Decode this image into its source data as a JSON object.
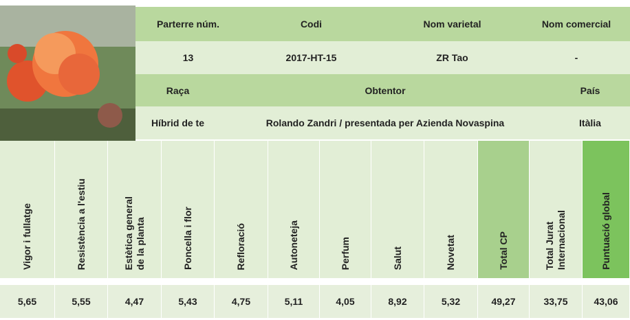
{
  "info": {
    "row1": [
      "Parterre núm.",
      "Codi",
      "Nom varietal",
      "Nom comercial"
    ],
    "row2": [
      "13",
      "2017-HT-15",
      "ZR Tao",
      "-"
    ],
    "row3": [
      "Raça",
      "Obtentor",
      "País"
    ],
    "row4": [
      "Híbrid de te",
      "Rolando Zandri / presentada per Azienda Novaspina",
      "Itàlia"
    ]
  },
  "scores": [
    {
      "label": "Vigor i fullatge",
      "value": "5,65"
    },
    {
      "label": "Resistència a l'estiu",
      "value": "5,55"
    },
    {
      "label": "Estètica general\nde la planta",
      "value": "4,47"
    },
    {
      "label": "Poncella i flor",
      "value": "5,43"
    },
    {
      "label": "Refloració",
      "value": "4,75"
    },
    {
      "label": "Autoneteja",
      "value": "5,11"
    },
    {
      "label": "Perfum",
      "value": "4,05"
    },
    {
      "label": "Salut",
      "value": "8,92"
    },
    {
      "label": "Novetat",
      "value": "5,32"
    },
    {
      "label": "Total CP",
      "value": "49,27"
    },
    {
      "label": "Total Jurat\nInternacional",
      "value": "33,75"
    },
    {
      "label": "Puntuació global",
      "value": "43,06"
    }
  ]
}
